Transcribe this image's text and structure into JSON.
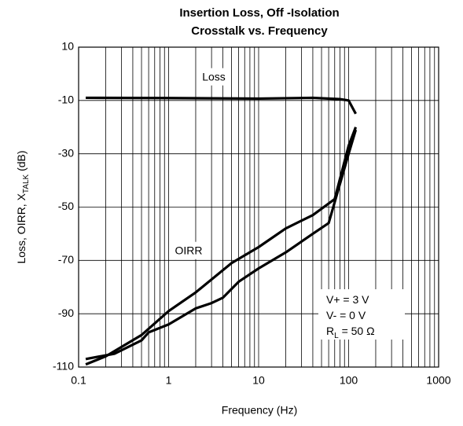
{
  "chart_data": {
    "type": "line",
    "title": [
      "Insertion Loss, Off -Isolation",
      "Crosstalk vs. Frequency"
    ],
    "xlabel": "Frequency (Hz)",
    "ylabel": [
      {
        "text": "Loss, OIRR, X"
      },
      {
        "text": "TALK",
        "sub": true
      },
      {
        "text": " (dB)"
      }
    ],
    "xscale": "log",
    "xlim": [
      0.1,
      1000
    ],
    "xticks": [
      0.1,
      1,
      10,
      100,
      1000
    ],
    "ylim": [
      -110,
      10
    ],
    "yticks": [
      -110,
      -90,
      -70,
      -50,
      -30,
      -10,
      10
    ],
    "grid": true,
    "series": [
      {
        "name": "Loss",
        "color": "#000000",
        "x": [
          0.12,
          1,
          10,
          40,
          80,
          100,
          120
        ],
        "values": [
          -9,
          -9.1,
          -9.3,
          -9,
          -9.5,
          -10,
          -15
        ]
      },
      {
        "name": "OIRR",
        "color": "#000000",
        "x": [
          0.12,
          0.2,
          0.5,
          1,
          2,
          5,
          10,
          20,
          40,
          70,
          100,
          120
        ],
        "values": [
          -109,
          -106,
          -98,
          -89,
          -82,
          -71,
          -65,
          -58,
          -53,
          -47,
          -27,
          -20
        ]
      },
      {
        "color": "#000000",
        "x": [
          0.12,
          0.25,
          0.5,
          0.6,
          1,
          2,
          3,
          4,
          6,
          10,
          20,
          40,
          60,
          100,
          120
        ],
        "values": [
          -107,
          -105,
          -100,
          -97,
          -94,
          -88,
          -86,
          -84,
          -78,
          -73,
          -67,
          -60,
          -56,
          -30,
          -21
        ]
      }
    ],
    "annotation": [
      [
        {
          "text": "V+ = 3 V"
        }
      ],
      [
        {
          "text": "V- = 0 V"
        }
      ],
      [
        {
          "text": "R"
        },
        {
          "text": "L",
          "sub": true
        },
        {
          "text": " = 50 Ω"
        }
      ]
    ]
  }
}
